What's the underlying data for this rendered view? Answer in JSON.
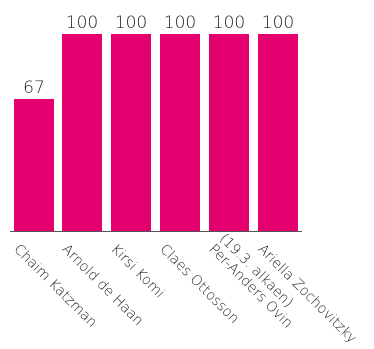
{
  "chart_data": {
    "type": "bar",
    "categories": [
      [
        "Chaim Katzman"
      ],
      [
        "Arnold de Haan"
      ],
      [
        "Kirsi Komi"
      ],
      [
        "Claes Ottosson"
      ],
      [
        "Per-Anders Ovin",
        "(19.3. alkaen)"
      ],
      [
        "Ariella Zochovitzky"
      ]
    ],
    "values": [
      67,
      100,
      100,
      100,
      100,
      100
    ],
    "value_labels": [
      "67",
      "100",
      "100",
      "100",
      "100",
      "100"
    ],
    "title": "",
    "xlabel": "",
    "ylabel": "",
    "ylim": [
      0,
      100
    ],
    "grid": false,
    "legend": "none",
    "colors": {
      "bar": "#e5006f",
      "axis": "#555555",
      "text": "#222222"
    }
  }
}
